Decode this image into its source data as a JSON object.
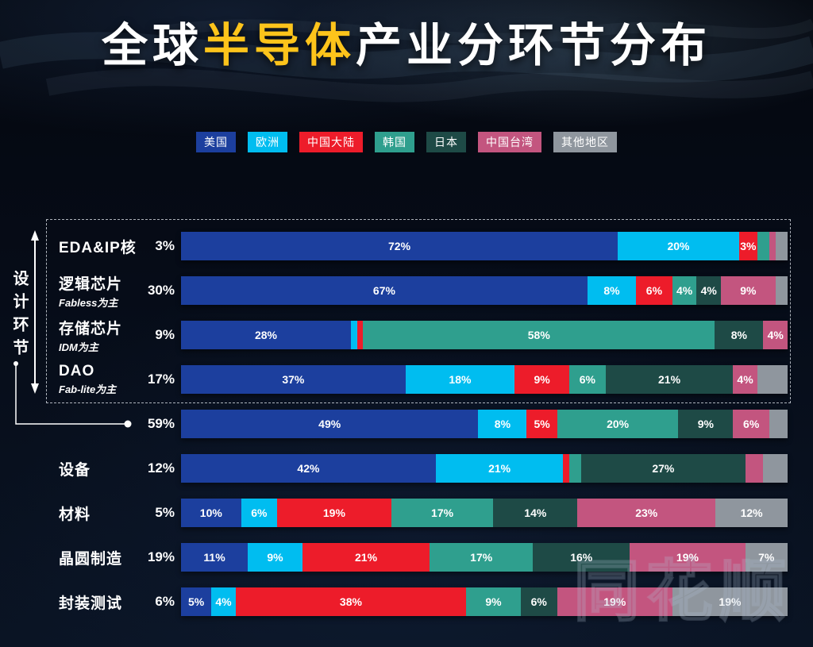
{
  "title": {
    "prefix": "全球",
    "highlight": "半导体",
    "suffix": "产业分环节分布"
  },
  "watermark": "同花顺",
  "annotation": {
    "group_label": "设计环节",
    "group_total": "59%"
  },
  "legend": [
    {
      "label": "美国",
      "color": "#1c3f9e"
    },
    {
      "label": "欧洲",
      "color": "#00bdf0"
    },
    {
      "label": "中国大陆",
      "color": "#ed1c2a"
    },
    {
      "label": "韩国",
      "color": "#2f9f8e"
    },
    {
      "label": "日本",
      "color": "#1e4a46"
    },
    {
      "label": "中国台湾",
      "color": "#c3557f"
    },
    {
      "label": "其他地区",
      "color": "#8f969e"
    }
  ],
  "chart_data": {
    "type": "bar",
    "stacked": true,
    "orientation": "horizontal",
    "title": "全球半导体产业分环节分布",
    "unit": "%",
    "legend_position": "top",
    "series_names": [
      "美国",
      "欧洲",
      "中国大陆",
      "韩国",
      "日本",
      "中国台湾",
      "其他地区"
    ],
    "series_colors": [
      "#1c3f9e",
      "#00bdf0",
      "#ed1c2a",
      "#2f9f8e",
      "#1e4a46",
      "#c3557f",
      "#8f969e"
    ],
    "rows": [
      {
        "label": "EDA&IP核",
        "sublabel": "",
        "share": "3%",
        "values": [
          72,
          20,
          3,
          2,
          0,
          1,
          2
        ],
        "labels": [
          "72%",
          "20%",
          "3%",
          "",
          "",
          "",
          ""
        ]
      },
      {
        "label": "逻辑芯片",
        "sublabel": "Fabless为主",
        "share": "30%",
        "values": [
          67,
          8,
          6,
          4,
          4,
          9,
          2
        ],
        "labels": [
          "67%",
          "8%",
          "6%",
          "4%",
          "4%",
          "9%",
          ""
        ]
      },
      {
        "label": "存储芯片",
        "sublabel": "IDM为主",
        "share": "9%",
        "values": [
          28,
          1,
          1,
          58,
          8,
          4,
          0
        ],
        "labels": [
          "28%",
          "",
          "",
          "58%",
          "8%",
          "4%",
          ""
        ]
      },
      {
        "label": "DAO",
        "sublabel": "Fab-lite为主",
        "share": "17%",
        "values": [
          37,
          18,
          9,
          6,
          21,
          4,
          5
        ],
        "labels": [
          "37%",
          "18%",
          "9%",
          "6%",
          "21%",
          "4%",
          ""
        ]
      },
      {
        "label": "",
        "sublabel": "",
        "share": "59%",
        "bullet": true,
        "values": [
          49,
          8,
          5,
          20,
          9,
          6,
          3
        ],
        "labels": [
          "49%",
          "8%",
          "5%",
          "20%",
          "9%",
          "6%",
          ""
        ]
      },
      {
        "label": "设备",
        "sublabel": "",
        "share": "12%",
        "values": [
          42,
          21,
          1,
          2,
          27,
          3,
          4
        ],
        "labels": [
          "42%",
          "21%",
          "",
          "",
          "27%",
          "",
          ""
        ]
      },
      {
        "label": "材料",
        "sublabel": "",
        "share": "5%",
        "values": [
          10,
          6,
          19,
          17,
          14,
          23,
          12
        ],
        "labels": [
          "10%",
          "6%",
          "19%",
          "17%",
          "14%",
          "23%",
          "12%"
        ]
      },
      {
        "label": "晶圆制造",
        "sublabel": "",
        "share": "19%",
        "values": [
          11,
          9,
          21,
          17,
          16,
          19,
          7
        ],
        "labels": [
          "11%",
          "9%",
          "21%",
          "17%",
          "16%",
          "19%",
          "7%"
        ]
      },
      {
        "label": "封装测试",
        "sublabel": "",
        "share": "6%",
        "values": [
          5,
          4,
          38,
          9,
          6,
          19,
          19
        ],
        "labels": [
          "5%",
          "4%",
          "38%",
          "9%",
          "6%",
          "19%",
          "19%"
        ]
      }
    ]
  }
}
